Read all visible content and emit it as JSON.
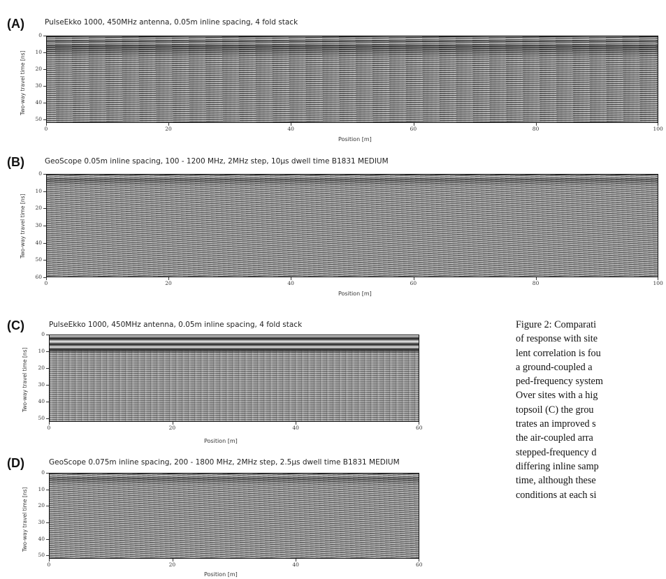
{
  "panels": [
    {
      "id": "A",
      "label": "(A)",
      "title": "PulseEkko 1000, 450MHz antenna, 0.05m inline spacing, 4 fold stack",
      "ylabel": "Two-way travel time [ns]",
      "xlabel": "Position [m]",
      "yticks": [
        "0",
        "10",
        "20",
        "30",
        "40",
        "50"
      ],
      "ylim": [
        0,
        52
      ],
      "xticks": [
        "0",
        "20",
        "40",
        "60",
        "80",
        "100"
      ],
      "xlim": [
        0,
        100
      ],
      "pattern": "strong-top"
    },
    {
      "id": "B",
      "label": "(B)",
      "title": "GeoScope 0.05m inline spacing, 100 - 1200 MHz, 2MHz step, 10µs dwell time B1831 MEDIUM",
      "ylabel": "Two-way travel time [ns]",
      "xlabel": "Position [m]",
      "yticks": [
        "0",
        "10",
        "20",
        "30",
        "40",
        "50",
        "60"
      ],
      "ylim": [
        0,
        60
      ],
      "xticks": [
        "0",
        "20",
        "40",
        "60",
        "80",
        "100"
      ],
      "xlim": [
        0,
        100
      ],
      "pattern": "diffuse"
    },
    {
      "id": "C",
      "label": "(C)",
      "title": "PulseEkko 1000, 450MHz antenna, 0.05m inline spacing, 4 fold stack",
      "ylabel": "Two-way travel time [ns]",
      "xlabel": "Position [m]",
      "yticks": [
        "0",
        "10",
        "20",
        "30",
        "40",
        "50"
      ],
      "ylim": [
        0,
        52
      ],
      "xticks": [
        "0",
        "20",
        "40",
        "60"
      ],
      "xlim": [
        0,
        60
      ],
      "pattern": "banded"
    },
    {
      "id": "D",
      "label": "(D)",
      "title": "GeoScope 0.075m inline spacing, 200 - 1800 MHz, 2MHz step, 2.5µs dwell time B1831 MEDIUM",
      "ylabel": "Two-way travel time [ns]",
      "xlabel": "Position [m]",
      "yticks": [
        "0",
        "10",
        "20",
        "30",
        "40",
        "50"
      ],
      "ylim": [
        0,
        52
      ],
      "xticks": [
        "0",
        "20",
        "40",
        "60"
      ],
      "xlim": [
        0,
        60
      ],
      "pattern": "diffuse"
    }
  ],
  "caption": {
    "lines": [
      "Figure 2: Comparati",
      "of response with site",
      "lent correlation is fou",
      "a ground-coupled a",
      "ped-frequency system",
      "Over sites with a hig",
      "topsoil (C) the grou",
      "trates an improved s",
      "the air-coupled arra",
      "stepped-frequency d",
      "differing inline samp",
      "time, although these",
      "conditions at each si"
    ]
  },
  "colors": {
    "radargram_base": "#9a9a9a",
    "reflector_dark": "#1e1e1e",
    "reflector_light": "#ececec"
  }
}
